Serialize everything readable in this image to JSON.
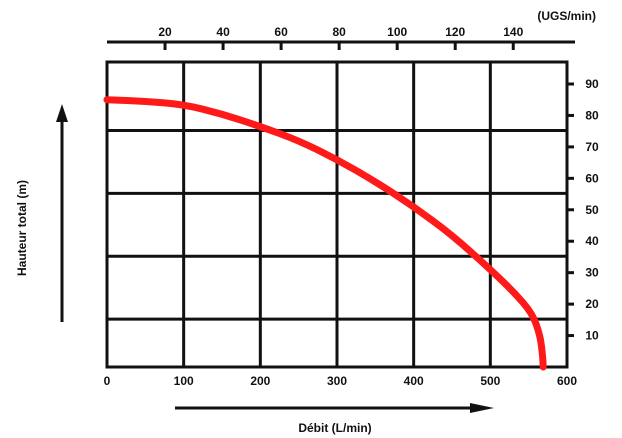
{
  "chart_data": {
    "type": "line",
    "xlabel": "Débit (L/min)",
    "ylabel": "Hauteur total (m)",
    "top_axis_unit": "(UGS/min)",
    "x_ticks": [
      0,
      100,
      200,
      300,
      400,
      500,
      600
    ],
    "top_ticks": [
      20,
      40,
      60,
      80,
      100,
      120,
      140
    ],
    "y_ticks": [
      10,
      20,
      30,
      40,
      50,
      60,
      70,
      80,
      90
    ],
    "xlim": [
      0,
      600
    ],
    "ylim": [
      0,
      97
    ],
    "grid": true,
    "colors": {
      "curve": "#ff1a1a",
      "grid": "#111111"
    },
    "series": [
      {
        "x": [
          0,
          50,
          100,
          150,
          200,
          250,
          300,
          350,
          400,
          450,
          500,
          530,
          555,
          565,
          568,
          569
        ],
        "y": [
          85,
          84.5,
          83.5,
          80.5,
          76.5,
          72,
          66,
          59,
          51,
          42,
          31,
          24,
          17,
          10,
          4,
          0
        ]
      }
    ]
  }
}
